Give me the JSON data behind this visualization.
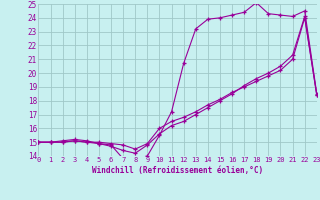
{
  "xlabel": "Windchill (Refroidissement éolien,°C)",
  "bg_color": "#c8f0f0",
  "grid_color": "#a0c8c8",
  "line_color": "#990099",
  "x_min": 0,
  "x_max": 23,
  "y_min": 14,
  "y_max": 25,
  "series1_x": [
    0,
    1,
    2,
    3,
    4,
    5,
    6,
    7,
    8,
    9,
    10,
    11,
    12,
    13,
    14,
    15,
    16,
    17,
    18,
    19,
    20,
    21,
    22,
    23
  ],
  "series1_y": [
    15.0,
    15.0,
    15.0,
    15.1,
    15.0,
    15.0,
    14.9,
    14.8,
    14.5,
    14.9,
    16.0,
    16.5,
    16.8,
    17.2,
    17.7,
    18.1,
    18.6,
    19.0,
    19.4,
    19.8,
    20.2,
    21.0,
    24.0,
    18.4
  ],
  "series2_x": [
    0,
    1,
    2,
    3,
    4,
    5,
    6,
    7,
    8,
    9,
    10,
    11,
    12,
    13,
    14,
    15,
    16,
    17,
    18,
    19,
    20,
    21,
    22,
    23
  ],
  "series2_y": [
    15.0,
    15.0,
    15.1,
    15.2,
    15.1,
    14.9,
    14.7,
    14.4,
    14.2,
    14.8,
    15.6,
    16.2,
    16.5,
    17.0,
    17.5,
    18.0,
    18.5,
    19.1,
    19.6,
    20.0,
    20.5,
    21.3,
    24.1,
    18.4
  ],
  "series3_x": [
    0,
    1,
    2,
    3,
    4,
    5,
    6,
    7,
    8,
    9,
    10,
    11,
    12,
    13,
    14,
    15,
    16,
    17,
    18,
    19,
    20,
    21,
    22,
    23
  ],
  "series3_y": [
    15.0,
    15.0,
    15.0,
    15.1,
    15.0,
    14.9,
    14.8,
    13.8,
    13.8,
    14.0,
    15.5,
    17.2,
    20.7,
    23.2,
    23.9,
    24.0,
    24.2,
    24.4,
    25.1,
    24.3,
    24.2,
    24.1,
    24.5,
    18.5
  ]
}
